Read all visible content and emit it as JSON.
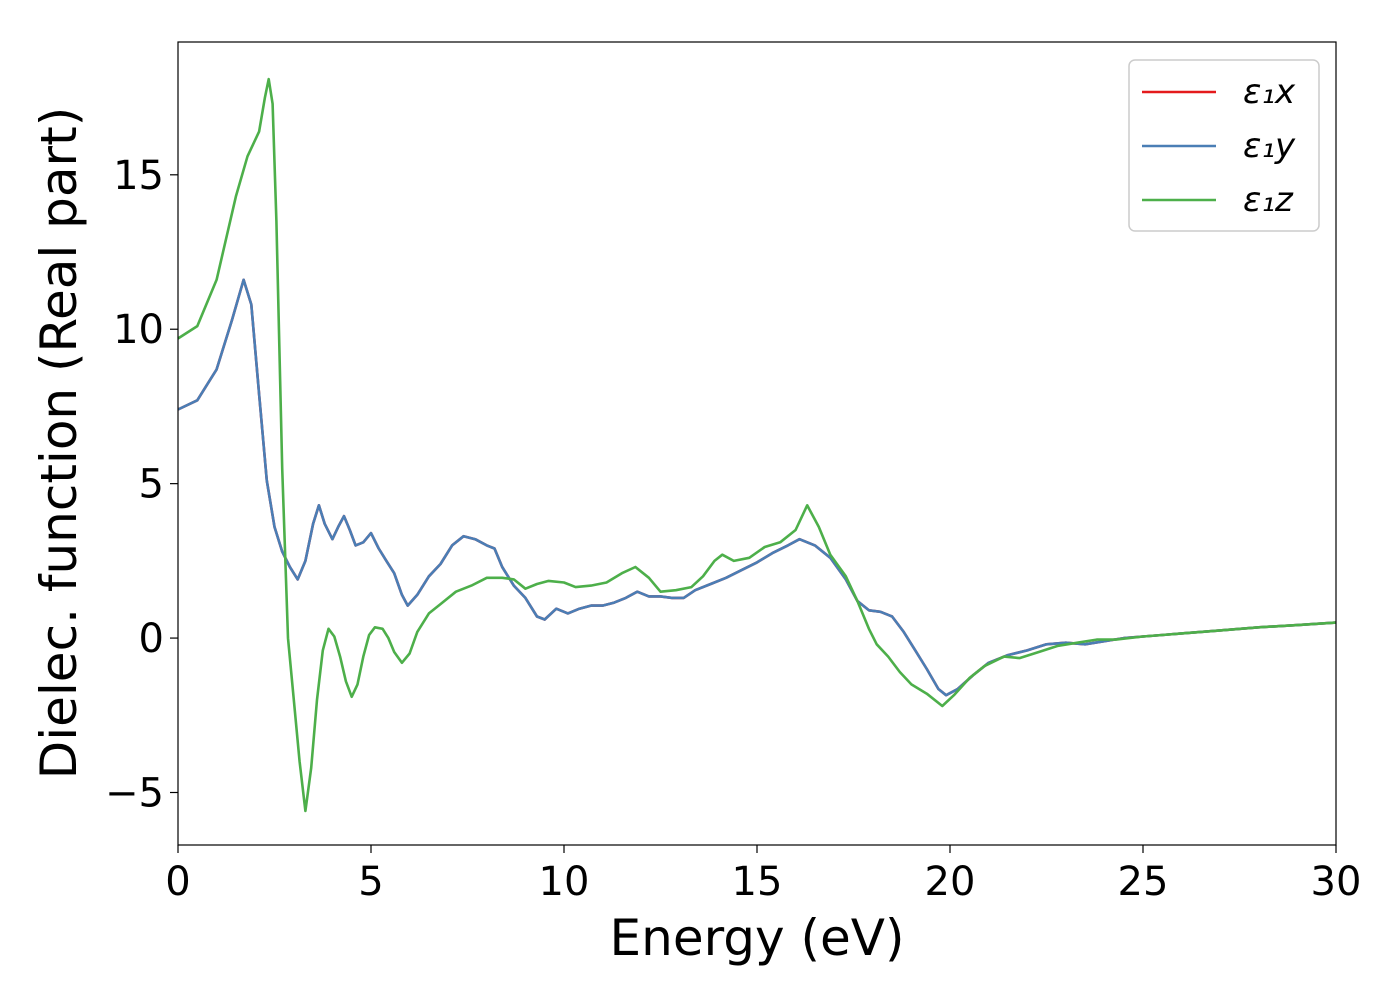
{
  "chart_data": {
    "type": "line",
    "title": "",
    "xlabel": "Energy (eV)",
    "ylabel": "Dielec. function (Real part)",
    "xlim": [
      0,
      30
    ],
    "ylim": [
      -6.7,
      19.3
    ],
    "grid": false,
    "legend_position": "top-right",
    "x_ticks": [
      0,
      5,
      10,
      15,
      20,
      25,
      30
    ],
    "x_tick_labels": [
      "0",
      "5",
      "10",
      "15",
      "20",
      "25",
      "30"
    ],
    "y_ticks": [
      -5,
      0,
      5,
      10,
      15
    ],
    "y_tick_labels": [
      "−5",
      "0",
      "5",
      "10",
      "15"
    ],
    "series": [
      {
        "name": "ε₁x",
        "color": "#e41a1c",
        "points": [
          [
            0,
            7.4
          ],
          [
            0.5,
            7.7
          ],
          [
            1.0,
            8.7
          ],
          [
            1.4,
            10.3
          ],
          [
            1.7,
            11.6
          ],
          [
            1.9,
            10.8
          ],
          [
            2.1,
            7.9
          ],
          [
            2.3,
            5.1
          ],
          [
            2.5,
            3.6
          ],
          [
            2.7,
            2.8
          ],
          [
            2.9,
            2.3
          ],
          [
            3.1,
            1.9
          ],
          [
            3.3,
            2.5
          ],
          [
            3.5,
            3.7
          ],
          [
            3.65,
            4.3
          ],
          [
            3.8,
            3.7
          ],
          [
            4.0,
            3.2
          ],
          [
            4.15,
            3.6
          ],
          [
            4.3,
            3.95
          ],
          [
            4.45,
            3.5
          ],
          [
            4.6,
            3.0
          ],
          [
            4.8,
            3.1
          ],
          [
            5.0,
            3.4
          ],
          [
            5.2,
            2.9
          ],
          [
            5.4,
            2.5
          ],
          [
            5.6,
            2.1
          ],
          [
            5.8,
            1.4
          ],
          [
            5.95,
            1.05
          ],
          [
            6.2,
            1.4
          ],
          [
            6.5,
            2.0
          ],
          [
            6.8,
            2.4
          ],
          [
            7.1,
            3.0
          ],
          [
            7.4,
            3.3
          ],
          [
            7.7,
            3.2
          ],
          [
            8.0,
            3.0
          ],
          [
            8.2,
            2.9
          ],
          [
            8.4,
            2.3
          ],
          [
            8.7,
            1.7
          ],
          [
            9.0,
            1.3
          ],
          [
            9.3,
            0.7
          ],
          [
            9.5,
            0.6
          ],
          [
            9.8,
            0.95
          ],
          [
            10.1,
            0.8
          ],
          [
            10.4,
            0.95
          ],
          [
            10.7,
            1.05
          ],
          [
            11.0,
            1.05
          ],
          [
            11.3,
            1.15
          ],
          [
            11.6,
            1.3
          ],
          [
            11.9,
            1.5
          ],
          [
            12.2,
            1.35
          ],
          [
            12.5,
            1.35
          ],
          [
            12.8,
            1.3
          ],
          [
            13.1,
            1.3
          ],
          [
            13.4,
            1.55
          ],
          [
            13.8,
            1.75
          ],
          [
            14.2,
            1.95
          ],
          [
            14.6,
            2.2
          ],
          [
            15.0,
            2.45
          ],
          [
            15.4,
            2.75
          ],
          [
            15.8,
            3.0
          ],
          [
            16.1,
            3.2
          ],
          [
            16.5,
            3.0
          ],
          [
            16.9,
            2.6
          ],
          [
            17.3,
            1.9
          ],
          [
            17.6,
            1.2
          ],
          [
            17.9,
            0.9
          ],
          [
            18.2,
            0.85
          ],
          [
            18.5,
            0.7
          ],
          [
            18.8,
            0.2
          ],
          [
            19.1,
            -0.4
          ],
          [
            19.4,
            -1.0
          ],
          [
            19.7,
            -1.65
          ],
          [
            19.9,
            -1.85
          ],
          [
            20.2,
            -1.65
          ],
          [
            20.6,
            -1.2
          ],
          [
            21.0,
            -0.8
          ],
          [
            21.5,
            -0.55
          ],
          [
            22.0,
            -0.4
          ],
          [
            22.5,
            -0.2
          ],
          [
            23.0,
            -0.15
          ],
          [
            23.5,
            -0.2
          ],
          [
            24.0,
            -0.1
          ],
          [
            24.5,
            0.0
          ],
          [
            25.0,
            0.05
          ],
          [
            25.5,
            0.1
          ],
          [
            26.0,
            0.15
          ],
          [
            27.0,
            0.25
          ],
          [
            28.0,
            0.35
          ],
          [
            29.0,
            0.42
          ],
          [
            30.0,
            0.5
          ]
        ]
      },
      {
        "name": "ε₁y",
        "color": "#4a7eb5",
        "points": [
          [
            0,
            7.4
          ],
          [
            0.5,
            7.7
          ],
          [
            1.0,
            8.7
          ],
          [
            1.4,
            10.3
          ],
          [
            1.7,
            11.6
          ],
          [
            1.9,
            10.8
          ],
          [
            2.1,
            7.9
          ],
          [
            2.3,
            5.1
          ],
          [
            2.5,
            3.6
          ],
          [
            2.7,
            2.8
          ],
          [
            2.9,
            2.3
          ],
          [
            3.1,
            1.9
          ],
          [
            3.3,
            2.5
          ],
          [
            3.5,
            3.7
          ],
          [
            3.65,
            4.3
          ],
          [
            3.8,
            3.7
          ],
          [
            4.0,
            3.2
          ],
          [
            4.15,
            3.6
          ],
          [
            4.3,
            3.95
          ],
          [
            4.45,
            3.5
          ],
          [
            4.6,
            3.0
          ],
          [
            4.8,
            3.1
          ],
          [
            5.0,
            3.4
          ],
          [
            5.2,
            2.9
          ],
          [
            5.4,
            2.5
          ],
          [
            5.6,
            2.1
          ],
          [
            5.8,
            1.4
          ],
          [
            5.95,
            1.05
          ],
          [
            6.2,
            1.4
          ],
          [
            6.5,
            2.0
          ],
          [
            6.8,
            2.4
          ],
          [
            7.1,
            3.0
          ],
          [
            7.4,
            3.3
          ],
          [
            7.7,
            3.2
          ],
          [
            8.0,
            3.0
          ],
          [
            8.2,
            2.9
          ],
          [
            8.4,
            2.3
          ],
          [
            8.7,
            1.7
          ],
          [
            9.0,
            1.3
          ],
          [
            9.3,
            0.7
          ],
          [
            9.5,
            0.6
          ],
          [
            9.8,
            0.95
          ],
          [
            10.1,
            0.8
          ],
          [
            10.4,
            0.95
          ],
          [
            10.7,
            1.05
          ],
          [
            11.0,
            1.05
          ],
          [
            11.3,
            1.15
          ],
          [
            11.6,
            1.3
          ],
          [
            11.9,
            1.5
          ],
          [
            12.2,
            1.35
          ],
          [
            12.5,
            1.35
          ],
          [
            12.8,
            1.3
          ],
          [
            13.1,
            1.3
          ],
          [
            13.4,
            1.55
          ],
          [
            13.8,
            1.75
          ],
          [
            14.2,
            1.95
          ],
          [
            14.6,
            2.2
          ],
          [
            15.0,
            2.45
          ],
          [
            15.4,
            2.75
          ],
          [
            15.8,
            3.0
          ],
          [
            16.1,
            3.2
          ],
          [
            16.5,
            3.0
          ],
          [
            16.9,
            2.6
          ],
          [
            17.3,
            1.9
          ],
          [
            17.6,
            1.2
          ],
          [
            17.9,
            0.9
          ],
          [
            18.2,
            0.85
          ],
          [
            18.5,
            0.7
          ],
          [
            18.8,
            0.2
          ],
          [
            19.1,
            -0.4
          ],
          [
            19.4,
            -1.0
          ],
          [
            19.7,
            -1.65
          ],
          [
            19.9,
            -1.85
          ],
          [
            20.2,
            -1.65
          ],
          [
            20.6,
            -1.2
          ],
          [
            21.0,
            -0.8
          ],
          [
            21.5,
            -0.55
          ],
          [
            22.0,
            -0.4
          ],
          [
            22.5,
            -0.2
          ],
          [
            23.0,
            -0.15
          ],
          [
            23.5,
            -0.2
          ],
          [
            24.0,
            -0.1
          ],
          [
            24.5,
            0.0
          ],
          [
            25.0,
            0.05
          ],
          [
            25.5,
            0.1
          ],
          [
            26.0,
            0.15
          ],
          [
            27.0,
            0.25
          ],
          [
            28.0,
            0.35
          ],
          [
            29.0,
            0.42
          ],
          [
            30.0,
            0.5
          ]
        ]
      },
      {
        "name": "ε₁z",
        "color": "#4daf4a",
        "points": [
          [
            0,
            9.7
          ],
          [
            0.5,
            10.1
          ],
          [
            1.0,
            11.6
          ],
          [
            1.5,
            14.3
          ],
          [
            1.8,
            15.6
          ],
          [
            2.1,
            16.4
          ],
          [
            2.25,
            17.5
          ],
          [
            2.35,
            18.1
          ],
          [
            2.45,
            17.3
          ],
          [
            2.55,
            13.5
          ],
          [
            2.7,
            5.5
          ],
          [
            2.85,
            0.0
          ],
          [
            3.0,
            -2.0
          ],
          [
            3.15,
            -4.0
          ],
          [
            3.3,
            -5.6
          ],
          [
            3.45,
            -4.2
          ],
          [
            3.6,
            -2.0
          ],
          [
            3.75,
            -0.4
          ],
          [
            3.9,
            0.3
          ],
          [
            4.05,
            0.05
          ],
          [
            4.2,
            -0.6
          ],
          [
            4.35,
            -1.4
          ],
          [
            4.5,
            -1.9
          ],
          [
            4.65,
            -1.5
          ],
          [
            4.8,
            -0.6
          ],
          [
            4.95,
            0.1
          ],
          [
            5.1,
            0.35
          ],
          [
            5.3,
            0.3
          ],
          [
            5.45,
            0.0
          ],
          [
            5.6,
            -0.45
          ],
          [
            5.8,
            -0.8
          ],
          [
            6.0,
            -0.5
          ],
          [
            6.2,
            0.2
          ],
          [
            6.5,
            0.8
          ],
          [
            6.8,
            1.1
          ],
          [
            7.2,
            1.5
          ],
          [
            7.6,
            1.7
          ],
          [
            8.0,
            1.95
          ],
          [
            8.4,
            1.95
          ],
          [
            8.7,
            1.9
          ],
          [
            9.0,
            1.6
          ],
          [
            9.3,
            1.75
          ],
          [
            9.6,
            1.85
          ],
          [
            10.0,
            1.8
          ],
          [
            10.3,
            1.65
          ],
          [
            10.7,
            1.7
          ],
          [
            11.1,
            1.8
          ],
          [
            11.5,
            2.1
          ],
          [
            11.85,
            2.3
          ],
          [
            12.2,
            1.95
          ],
          [
            12.5,
            1.5
          ],
          [
            12.9,
            1.55
          ],
          [
            13.3,
            1.65
          ],
          [
            13.6,
            2.0
          ],
          [
            13.9,
            2.5
          ],
          [
            14.1,
            2.7
          ],
          [
            14.4,
            2.5
          ],
          [
            14.8,
            2.6
          ],
          [
            15.2,
            2.95
          ],
          [
            15.6,
            3.1
          ],
          [
            16.0,
            3.5
          ],
          [
            16.3,
            4.3
          ],
          [
            16.6,
            3.6
          ],
          [
            16.9,
            2.7
          ],
          [
            17.3,
            2.0
          ],
          [
            17.6,
            1.2
          ],
          [
            17.9,
            0.3
          ],
          [
            18.1,
            -0.2
          ],
          [
            18.4,
            -0.6
          ],
          [
            18.7,
            -1.1
          ],
          [
            19.0,
            -1.5
          ],
          [
            19.4,
            -1.8
          ],
          [
            19.8,
            -2.2
          ],
          [
            20.1,
            -1.85
          ],
          [
            20.5,
            -1.3
          ],
          [
            20.9,
            -0.9
          ],
          [
            21.4,
            -0.6
          ],
          [
            21.8,
            -0.65
          ],
          [
            22.3,
            -0.45
          ],
          [
            22.8,
            -0.25
          ],
          [
            23.3,
            -0.15
          ],
          [
            23.8,
            -0.05
          ],
          [
            24.3,
            -0.05
          ],
          [
            25.0,
            0.05
          ],
          [
            25.5,
            0.1
          ],
          [
            26.0,
            0.15
          ],
          [
            27.0,
            0.25
          ],
          [
            28.0,
            0.35
          ],
          [
            29.0,
            0.42
          ],
          [
            30.0,
            0.5
          ]
        ]
      }
    ]
  }
}
